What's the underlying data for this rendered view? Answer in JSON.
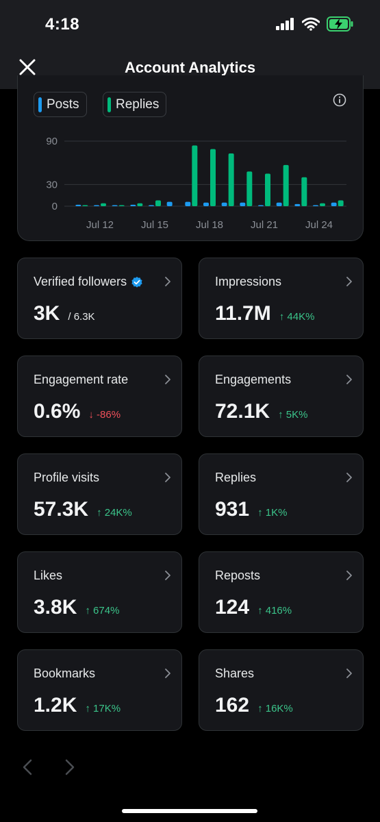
{
  "status": {
    "time": "4:18"
  },
  "header": {
    "title": "Account Analytics"
  },
  "legend": [
    {
      "label": "Posts",
      "color": "#1d9bf0"
    },
    {
      "label": "Replies",
      "color": "#00ba7c"
    }
  ],
  "chart_data": {
    "type": "bar",
    "categories": [
      "Jul 11",
      "Jul 12",
      "Jul 13",
      "Jul 14",
      "Jul 15",
      "Jul 16",
      "Jul 17",
      "Jul 18",
      "Jul 19",
      "Jul 20",
      "Jul 21",
      "Jul 22",
      "Jul 23",
      "Jul 24",
      "Jul 25"
    ],
    "series": [
      {
        "name": "Posts",
        "color": "#1d9bf0",
        "values": [
          2,
          1,
          1,
          2,
          1,
          6,
          6,
          5,
          5,
          5,
          1,
          5,
          3,
          1,
          5
        ]
      },
      {
        "name": "Replies",
        "color": "#00ba7c",
        "values": [
          1,
          4,
          1,
          4,
          8,
          0,
          84,
          79,
          73,
          48,
          45,
          57,
          40,
          4,
          8
        ]
      }
    ],
    "xtick_labels": [
      "Jul 12",
      "Jul 15",
      "Jul 18",
      "Jul 21",
      "Jul 24"
    ],
    "ytick_labels": [
      "90",
      "30",
      "0"
    ],
    "ylim": [
      0,
      90
    ],
    "grid": true
  },
  "metrics": [
    {
      "label": "Verified followers",
      "value": "3K",
      "sub": "/ 6.3K",
      "change": "",
      "direction": "none",
      "verified": true
    },
    {
      "label": "Impressions",
      "value": "11.7M",
      "sub": "",
      "change": "↑ 44K%",
      "direction": "up",
      "verified": false
    },
    {
      "label": "Engagement rate",
      "value": "0.6%",
      "sub": "",
      "change": "↓ -86%",
      "direction": "down",
      "verified": false
    },
    {
      "label": "Engagements",
      "value": "72.1K",
      "sub": "",
      "change": "↑ 5K%",
      "direction": "up",
      "verified": false
    },
    {
      "label": "Profile visits",
      "value": "57.3K",
      "sub": "",
      "change": "↑ 24K%",
      "direction": "up",
      "verified": false
    },
    {
      "label": "Replies",
      "value": "931",
      "sub": "",
      "change": "↑ 1K%",
      "direction": "up",
      "verified": false
    },
    {
      "label": "Likes",
      "value": "3.8K",
      "sub": "",
      "change": "↑ 674%",
      "direction": "up",
      "verified": false
    },
    {
      "label": "Reposts",
      "value": "124",
      "sub": "",
      "change": "↑ 416%",
      "direction": "up",
      "verified": false
    },
    {
      "label": "Bookmarks",
      "value": "1.2K",
      "sub": "",
      "change": "↑ 17K%",
      "direction": "up",
      "verified": false
    },
    {
      "label": "Shares",
      "value": "162",
      "sub": "",
      "change": "↑ 16K%",
      "direction": "up",
      "verified": false
    }
  ],
  "icons": {
    "close": "close-icon",
    "info": "info-icon",
    "chevron": "chevron-right-icon",
    "verified": "verified-badge-icon",
    "prev": "chevron-left-icon",
    "next": "chevron-right-icon"
  }
}
